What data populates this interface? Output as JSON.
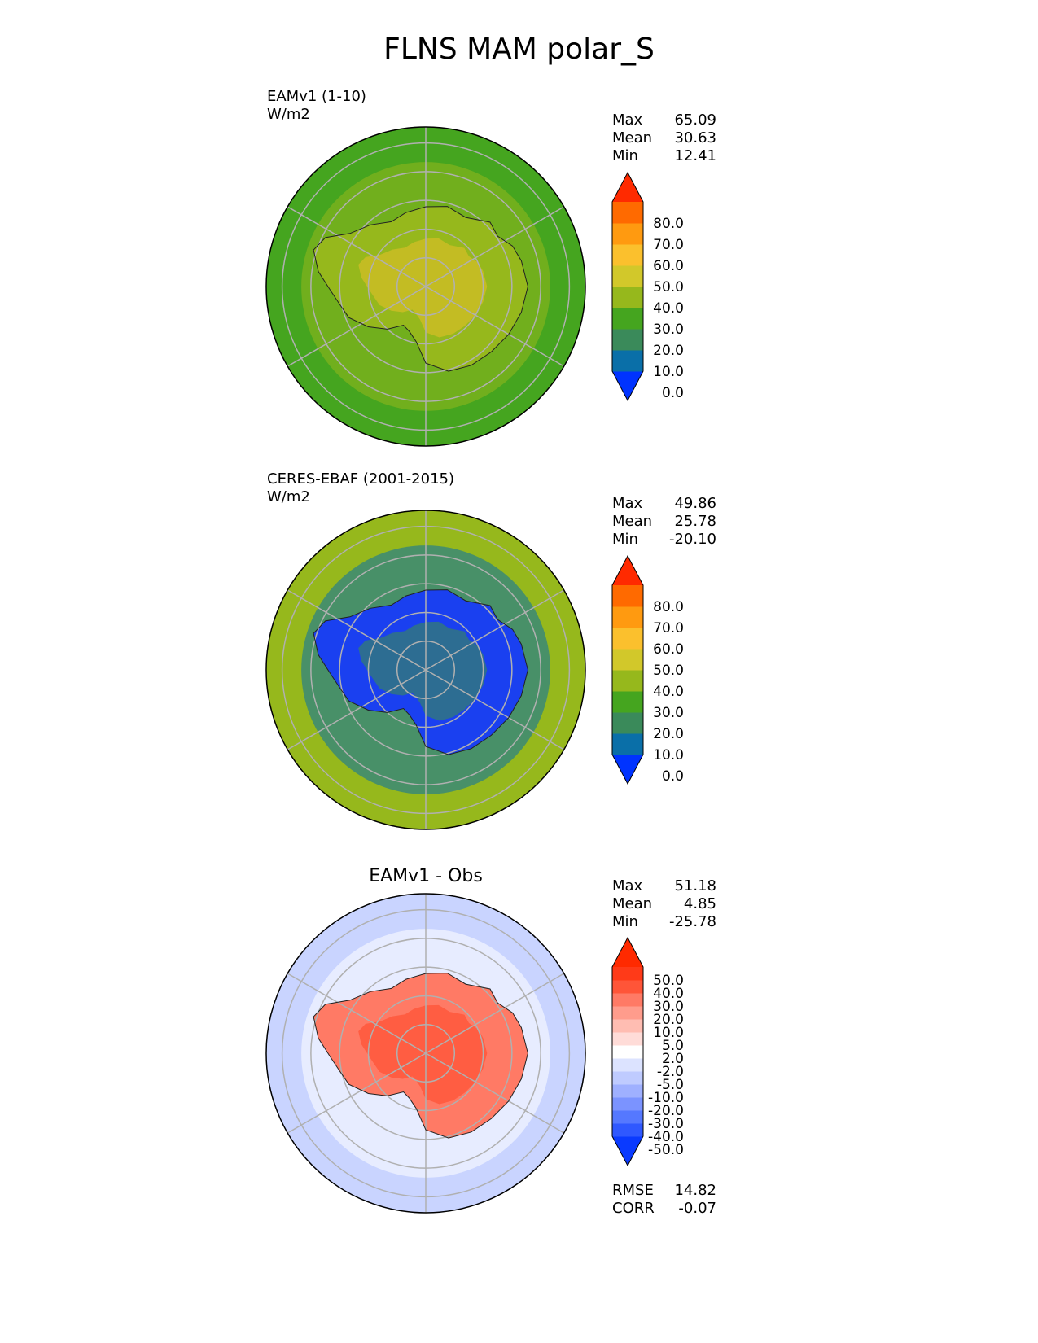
{
  "title": "FLNS MAM polar_S",
  "panels": [
    {
      "label_line1": "EAMv1 (1-10)",
      "label_line2": "W/m2",
      "center_title": "",
      "stats": [
        {
          "k": "Max",
          "v": "65.09"
        },
        {
          "k": "Mean",
          "v": "30.63"
        },
        {
          "k": "Min",
          "v": "12.41"
        }
      ],
      "colorbar": {
        "ticks": [
          "80.0",
          "70.0",
          "60.0",
          "50.0",
          "40.0",
          "30.0",
          "20.0",
          "10.0",
          "0.0"
        ],
        "colors": [
          "#0033ff",
          "#0a6fa8",
          "#3a8a5a",
          "#45a51f",
          "#96b81c",
          "#d2c82a",
          "#fbc02d",
          "#ff9a10",
          "#ff6a00",
          "#ff2a00"
        ]
      },
      "ocean_color": "#45a51f",
      "land_color": "#96b81c",
      "inner_color": "#96b81c",
      "accent_color": "#fbc02d"
    },
    {
      "label_line1": "CERES-EBAF (2001-2015)",
      "label_line2": "W/m2",
      "center_title": "",
      "stats": [
        {
          "k": "Max",
          "v": "49.86"
        },
        {
          "k": "Mean",
          "v": "25.78"
        },
        {
          "k": "Min",
          "v": "-20.10"
        }
      ],
      "colorbar": {
        "ticks": [
          "80.0",
          "70.0",
          "60.0",
          "50.0",
          "40.0",
          "30.0",
          "20.0",
          "10.0",
          "0.0"
        ],
        "colors": [
          "#0033ff",
          "#0a6fa8",
          "#3a8a5a",
          "#45a51f",
          "#96b81c",
          "#d2c82a",
          "#fbc02d",
          "#ff9a10",
          "#ff6a00",
          "#ff2a00"
        ]
      },
      "ocean_color": "#96b81c",
      "land_color": "#1a40f0",
      "inner_color": "#0a6fa8",
      "accent_color": "#45a51f"
    },
    {
      "label_line1": "",
      "label_line2": "",
      "center_title": "EAMv1 - Obs",
      "stats": [
        {
          "k": "Max",
          "v": "51.18"
        },
        {
          "k": "Mean",
          "v": "4.85"
        },
        {
          "k": "Min",
          "v": "-25.78"
        }
      ],
      "extra_stats": [
        {
          "k": "RMSE",
          "v": "14.82"
        },
        {
          "k": "CORR",
          "v": "-0.07"
        }
      ],
      "colorbar": {
        "ticks": [
          "50.0",
          "40.0",
          "30.0",
          "20.0",
          "10.0",
          "5.0",
          "2.0",
          "-2.0",
          "-5.0",
          "-10.0",
          "-20.0",
          "-30.0",
          "-40.0",
          "-50.0"
        ],
        "colors": [
          "#0a3aff",
          "#2f58ff",
          "#5578ff",
          "#7b93ff",
          "#9fb0ff",
          "#bfcbff",
          "#dce3ff",
          "#ffffff",
          "#ffdcd8",
          "#ffbdb2",
          "#ff9c8c",
          "#ff7a65",
          "#ff5538",
          "#ff3a18",
          "#ff2a00"
        ]
      },
      "ocean_color": "#c9d4ff",
      "land_color": "#ff7a65",
      "inner_color": "#ffffff",
      "accent_color": "#ff3a18"
    }
  ]
}
